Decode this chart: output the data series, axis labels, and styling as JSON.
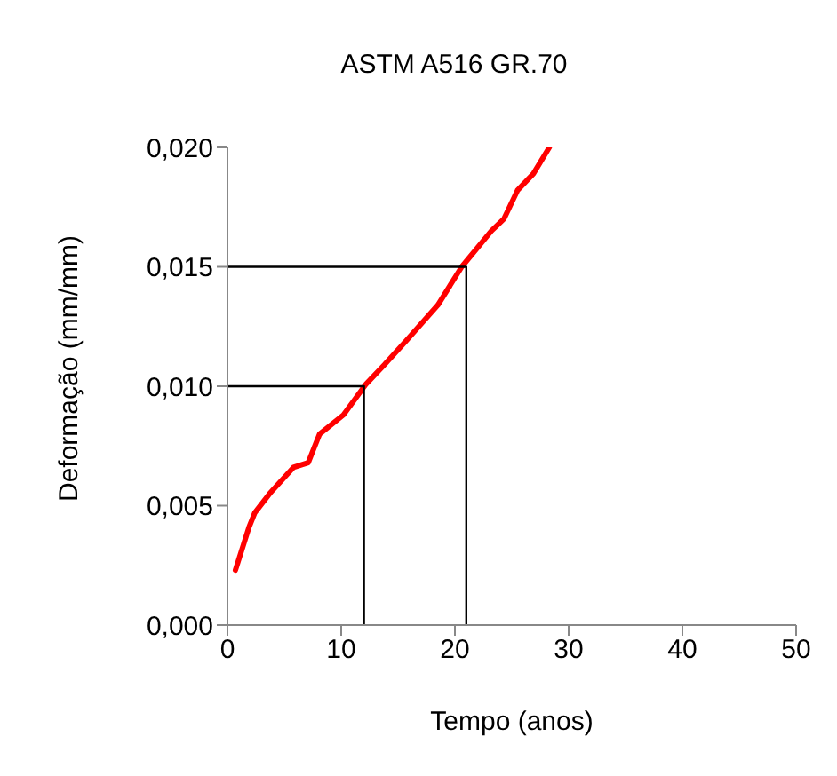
{
  "chart_data": {
    "type": "line",
    "title": "ASTM A516 GR.70",
    "xlabel": "Tempo (anos)",
    "ylabel": "Deformação (mm/mm)",
    "series": [
      {
        "color": "#ff0000",
        "x": [
          0.7,
          1.9,
          2.4,
          3.7,
          5.8,
          7.1,
          8.1,
          10.2,
          12.2,
          13.8,
          15.7,
          18.5,
          20.6,
          23.2,
          24.3,
          25.5,
          26.9,
          28.3
        ],
        "values": [
          0.0023,
          0.0041,
          0.0047,
          0.0055,
          0.0066,
          0.0068,
          0.008,
          0.0088,
          0.0101,
          0.0109,
          0.0119,
          0.0134,
          0.015,
          0.0165,
          0.017,
          0.0182,
          0.0189,
          0.02
        ]
      },
      {
        "color": "#000000",
        "x": [
          0,
          12,
          12
        ],
        "values": [
          0.01,
          0.01,
          0
        ]
      },
      {
        "color": "#000000",
        "x": [
          0,
          21,
          21
        ],
        "values": [
          0.015,
          0.015,
          0
        ]
      }
    ],
    "xlim": [
      0,
      50
    ],
    "xticks": [
      0,
      10,
      20,
      30,
      40,
      50
    ],
    "ylim": [
      0,
      0.02
    ],
    "yticks": [
      {
        "value": 0,
        "label": "0,000"
      },
      {
        "value": 0.005,
        "label": "0,005"
      },
      {
        "value": 0.01,
        "label": "0,010"
      },
      {
        "value": 0.015,
        "label": "0,015"
      },
      {
        "value": 0.02,
        "label": "0,020"
      }
    ],
    "grid": false,
    "legend": false,
    "marker": "none",
    "line_style": "solid"
  }
}
